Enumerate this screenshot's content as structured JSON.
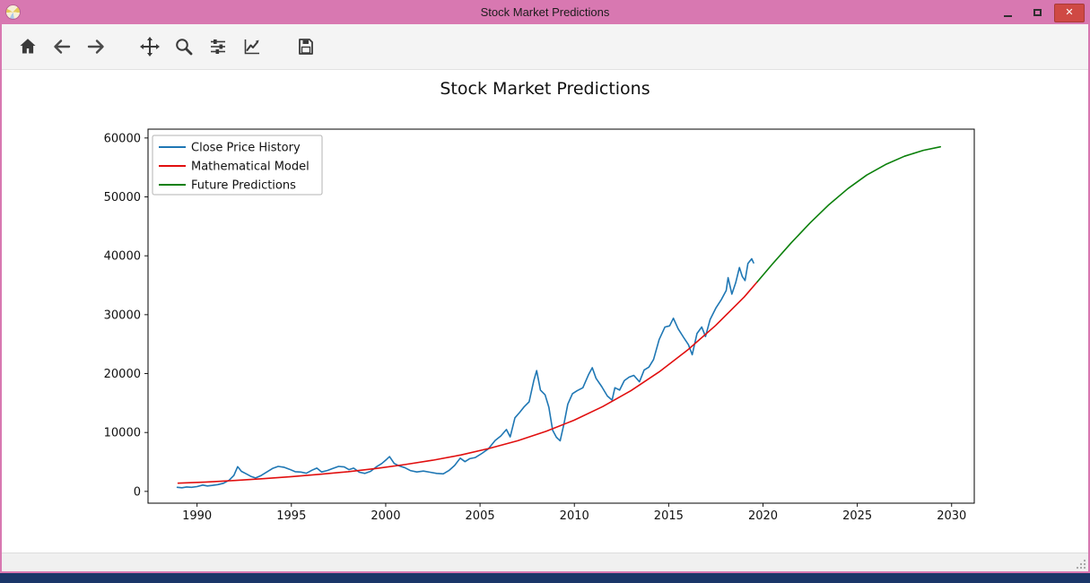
{
  "window": {
    "title": "Stock Market Predictions",
    "controls": [
      {
        "id": "minimize",
        "glyph": "–"
      },
      {
        "id": "maximize",
        "glyph": "□"
      },
      {
        "id": "close",
        "glyph": "✕"
      }
    ]
  },
  "colors": {
    "titlebar": "#d878b1",
    "closebtn": "#cf4944",
    "toolbar": "#f4f4f4",
    "statusbar": "#f0f0f0",
    "desktop": "#1a3668"
  },
  "toolbar": {
    "buttons": [
      {
        "id": "home"
      },
      {
        "id": "back"
      },
      {
        "id": "forward"
      },
      {
        "id": "pan"
      },
      {
        "id": "zoom"
      },
      {
        "id": "configure-subplots"
      },
      {
        "id": "edit-axes"
      },
      {
        "id": "save"
      }
    ]
  },
  "statusbar": {
    "text": ""
  },
  "chart_data": {
    "type": "line",
    "title": "Stock Market Predictions",
    "xlabel": "",
    "ylabel": "",
    "xlim": [
      1987.4,
      2031.2
    ],
    "ylim": [
      -2000,
      61500
    ],
    "xticks": [
      1990,
      1995,
      2000,
      2005,
      2010,
      2015,
      2020,
      2025,
      2030
    ],
    "yticks": [
      0,
      10000,
      20000,
      30000,
      40000,
      50000,
      60000
    ],
    "grid": false,
    "legend_position": "upper-left",
    "series": [
      {
        "name": "Close Price History",
        "color": "#1f77b4",
        "x": [
          1988.95,
          1989.2,
          1989.45,
          1989.7,
          1990.0,
          1990.3,
          1990.55,
          1990.8,
          1991.1,
          1991.4,
          1991.7,
          1991.95,
          1992.15,
          1992.35,
          1992.6,
          1992.85,
          1993.1,
          1993.4,
          1993.7,
          1994.0,
          1994.3,
          1994.6,
          1994.9,
          1995.2,
          1995.5,
          1995.8,
          1996.1,
          1996.35,
          1996.6,
          1996.9,
          1997.2,
          1997.5,
          1997.8,
          1998.05,
          1998.3,
          1998.6,
          1998.9,
          1999.2,
          1999.5,
          1999.8,
          2000.05,
          2000.2,
          2000.45,
          2000.7,
          2001.0,
          2001.3,
          2001.65,
          2002.0,
          2002.35,
          2002.7,
          2003.05,
          2003.35,
          2003.65,
          2003.95,
          2004.2,
          2004.45,
          2004.75,
          2005.1,
          2005.45,
          2005.8,
          2006.1,
          2006.4,
          2006.6,
          2006.85,
          2007.1,
          2007.35,
          2007.6,
          2007.85,
          2008.0,
          2008.2,
          2008.45,
          2008.65,
          2008.85,
          2009.05,
          2009.25,
          2009.45,
          2009.65,
          2009.9,
          2010.15,
          2010.45,
          2010.75,
          2010.95,
          2011.15,
          2011.45,
          2011.75,
          2012.0,
          2012.15,
          2012.4,
          2012.65,
          2012.9,
          2013.15,
          2013.45,
          2013.7,
          2013.95,
          2014.2,
          2014.5,
          2014.8,
          2015.05,
          2015.25,
          2015.5,
          2015.8,
          2016.05,
          2016.25,
          2016.5,
          2016.75,
          2016.95,
          2017.2,
          2017.5,
          2017.8,
          2018.05,
          2018.15,
          2018.35,
          2018.55,
          2018.75,
          2018.9,
          2019.05,
          2019.2,
          2019.4,
          2019.5
        ],
        "y": [
          700,
          620,
          760,
          700,
          820,
          1080,
          920,
          1020,
          1150,
          1380,
          1900,
          2700,
          4200,
          3400,
          3000,
          2550,
          2280,
          2700,
          3300,
          3900,
          4250,
          4100,
          3750,
          3350,
          3280,
          3080,
          3600,
          3950,
          3300,
          3550,
          3900,
          4250,
          4150,
          3700,
          3950,
          3250,
          3050,
          3400,
          4150,
          4750,
          5450,
          5900,
          4750,
          4350,
          4050,
          3550,
          3300,
          3450,
          3250,
          3050,
          2980,
          3550,
          4400,
          5650,
          5050,
          5550,
          5750,
          6450,
          7250,
          8650,
          9400,
          10500,
          9250,
          12500,
          13400,
          14400,
          15200,
          18800,
          20500,
          17200,
          16400,
          14300,
          10400,
          9200,
          8600,
          11500,
          14800,
          16600,
          17100,
          17600,
          19800,
          21000,
          19200,
          17800,
          16200,
          15500,
          17600,
          17200,
          18800,
          19400,
          19700,
          18600,
          20600,
          21100,
          22400,
          25800,
          27900,
          28100,
          29400,
          27600,
          26100,
          24900,
          23200,
          26800,
          27900,
          26300,
          29200,
          31100,
          32600,
          34100,
          36300,
          33500,
          35400,
          38000,
          36500,
          35800,
          38700,
          39500,
          38800
        ]
      },
      {
        "name": "Mathematical Model",
        "color": "#e10f0f",
        "x": [
          1989.0,
          1990.5,
          1992.0,
          1993.5,
          1995.0,
          1996.5,
          1998.0,
          1999.5,
          2001.0,
          2002.5,
          2004.0,
          2005.5,
          2007.0,
          2008.5,
          2010.0,
          2011.5,
          2013.0,
          2014.5,
          2016.0,
          2017.5,
          2019.0,
          2019.7
        ],
        "y": [
          1400,
          1600,
          1850,
          2150,
          2500,
          2900,
          3350,
          3900,
          4550,
          5300,
          6200,
          7300,
          8600,
          10200,
          12100,
          14400,
          17100,
          20300,
          24000,
          28200,
          33000,
          35600
        ]
      },
      {
        "name": "Future Predictions",
        "color": "#0b800b",
        "x": [
          2019.7,
          2020.5,
          2021.5,
          2022.5,
          2023.5,
          2024.5,
          2025.5,
          2026.5,
          2027.5,
          2028.5,
          2029.4
        ],
        "y": [
          35600,
          38600,
          42200,
          45600,
          48700,
          51400,
          53700,
          55500,
          56900,
          57900,
          58500
        ]
      }
    ]
  }
}
